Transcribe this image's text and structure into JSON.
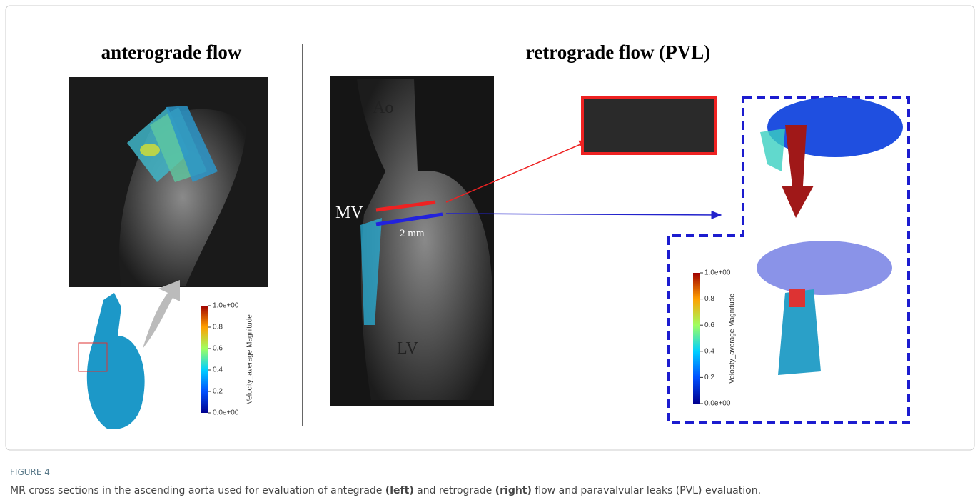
{
  "panels": {
    "left": {
      "title": "anterograde flow",
      "colorbar": {
        "ticks": [
          "1.0e+00",
          "0.8",
          "0.6",
          "0.4",
          "0.2",
          "0.0e+00"
        ],
        "label": "Velocity_average Magnitude"
      }
    },
    "right": {
      "title": "retrograde flow (PVL)",
      "labels": {
        "ao": "Ao",
        "mv": "MV",
        "distance": "2 mm",
        "lv": "LV"
      },
      "colorbar": {
        "ticks": [
          "1.0e+00",
          "0.8",
          "0.6",
          "0.4",
          "0.2",
          "0.0e+00"
        ],
        "label": "Velocity_average Magnitude"
      }
    }
  },
  "figure": {
    "label": "FIGURE 4",
    "caption": [
      "MR cross sections in the ascending aorta used for evaluation of antegrade ",
      "(left)",
      " and retrograde ",
      "(right)",
      " flow and paravalvular leaks (PVL) evaluation."
    ]
  }
}
